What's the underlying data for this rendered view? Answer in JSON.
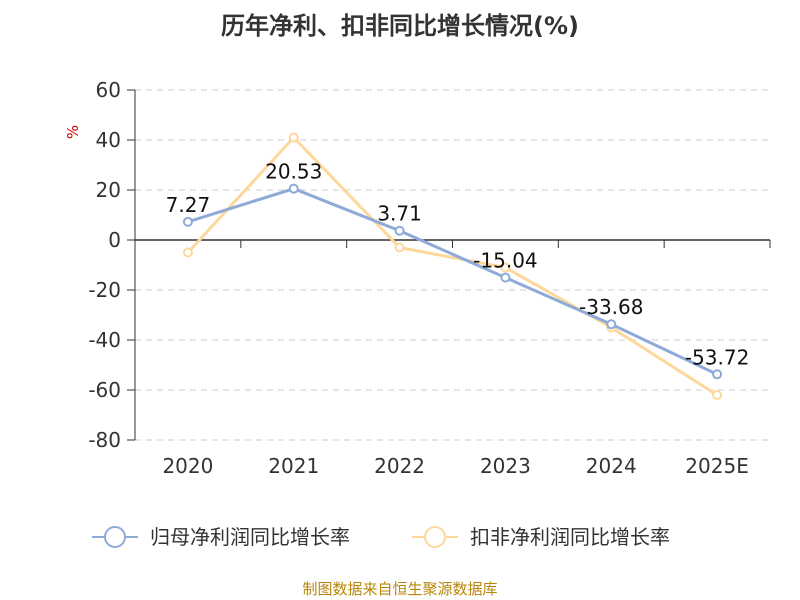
{
  "chart_data": {
    "type": "line",
    "title": "历年净利、扣非同比增长情况(%)",
    "ylabel": "%",
    "xlabel": "",
    "ylim": [
      -80,
      60
    ],
    "yticks": [
      60,
      40,
      20,
      0,
      -20,
      -40,
      -60,
      -80
    ],
    "categories": [
      "2020",
      "2021",
      "2022",
      "2023",
      "2024",
      "2025E"
    ],
    "grid": true,
    "legend_position": "bottom",
    "series": [
      {
        "name": "归母净利润同比增长率",
        "color": "#8eaad8",
        "values": [
          7.27,
          20.53,
          3.71,
          -15.04,
          -33.68,
          -53.72
        ],
        "labels": [
          "7.27",
          "20.53",
          "3.71",
          "-15.04",
          "-33.68",
          "-53.72"
        ]
      },
      {
        "name": "扣非净利润同比增长率",
        "color": "#fdd89a",
        "values": [
          -5,
          41,
          -3,
          -11,
          -35,
          -62
        ]
      }
    ]
  },
  "footer": {
    "source": "制图数据来自恒生聚源数据库"
  }
}
